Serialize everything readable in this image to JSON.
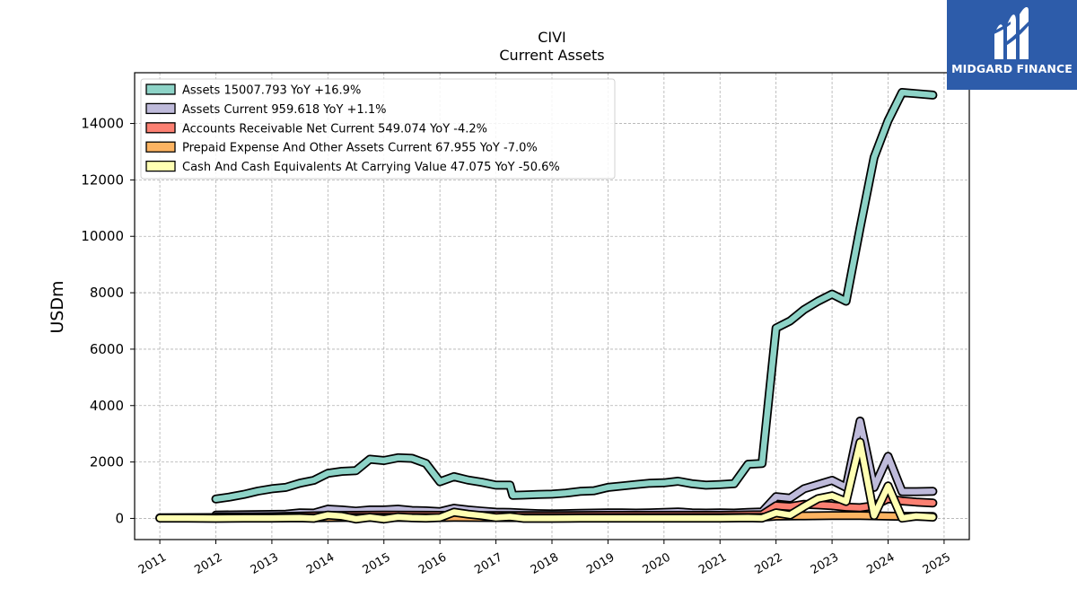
{
  "brand": {
    "name": "MIDGARD FINANCE",
    "background_color": "#2d5caa",
    "logo_icon": "midgard-m-logo-icon"
  },
  "chart_data": {
    "type": "line",
    "title": "CIVI",
    "subtitle": "Current  Assets",
    "xlabel": "",
    "ylabel": "USDm",
    "xlim": [
      2010.55,
      2025.45
    ],
    "ylim": [
      -750,
      15800
    ],
    "x_ticks": [
      "2011",
      "2012",
      "2013",
      "2014",
      "2015",
      "2016",
      "2017",
      "2018",
      "2019",
      "2020",
      "2021",
      "2022",
      "2023",
      "2024",
      "2025"
    ],
    "y_ticks": [
      "0",
      "2000",
      "4000",
      "6000",
      "8000",
      "10000",
      "12000",
      "14000"
    ],
    "y_tick_values": [
      0,
      2000,
      4000,
      6000,
      8000,
      10000,
      12000,
      14000
    ],
    "grid": true,
    "legend_position": "upper-left",
    "series": [
      {
        "name": "Assets",
        "legend": "Assets  15007.793 YoY +16.9%",
        "color": "#8dd3c7",
        "points": [
          [
            2012.0,
            690
          ],
          [
            2012.25,
            760
          ],
          [
            2012.5,
            850
          ],
          [
            2012.75,
            970
          ],
          [
            2013.0,
            1050
          ],
          [
            2013.25,
            1100
          ],
          [
            2013.5,
            1250
          ],
          [
            2013.75,
            1350
          ],
          [
            2014.0,
            1600
          ],
          [
            2014.25,
            1670
          ],
          [
            2014.5,
            1690
          ],
          [
            2014.75,
            2100
          ],
          [
            2015.0,
            2050
          ],
          [
            2015.25,
            2150
          ],
          [
            2015.5,
            2130
          ],
          [
            2015.75,
            1950
          ],
          [
            2016.0,
            1300
          ],
          [
            2016.25,
            1480
          ],
          [
            2016.5,
            1360
          ],
          [
            2016.75,
            1280
          ],
          [
            2017.0,
            1180
          ],
          [
            2017.25,
            1180
          ],
          [
            2017.3,
            820
          ],
          [
            2017.5,
            830
          ],
          [
            2017.75,
            850
          ],
          [
            2018.0,
            860
          ],
          [
            2018.25,
            900
          ],
          [
            2018.5,
            960
          ],
          [
            2018.75,
            980
          ],
          [
            2019.0,
            1100
          ],
          [
            2019.25,
            1150
          ],
          [
            2019.5,
            1200
          ],
          [
            2019.75,
            1250
          ],
          [
            2020.0,
            1260
          ],
          [
            2020.25,
            1320
          ],
          [
            2020.5,
            1230
          ],
          [
            2020.75,
            1180
          ],
          [
            2021.0,
            1200
          ],
          [
            2021.25,
            1230
          ],
          [
            2021.5,
            1920
          ],
          [
            2021.75,
            1950
          ],
          [
            2022.0,
            6750
          ],
          [
            2022.25,
            7000
          ],
          [
            2022.5,
            7400
          ],
          [
            2022.75,
            7700
          ],
          [
            2023.0,
            7950
          ],
          [
            2023.25,
            7700
          ],
          [
            2023.5,
            10300
          ],
          [
            2023.75,
            12800
          ],
          [
            2024.0,
            14100
          ],
          [
            2024.25,
            15100
          ],
          [
            2024.5,
            15060
          ],
          [
            2024.8,
            15008
          ]
        ]
      },
      {
        "name": "Assets Current",
        "legend": "Assets Current  959.618 YoY +1.1%",
        "color": "#bebada",
        "points": [
          [
            2012.0,
            120
          ],
          [
            2012.5,
            130
          ],
          [
            2013.0,
            140
          ],
          [
            2013.25,
            150
          ],
          [
            2013.5,
            200
          ],
          [
            2013.75,
            190
          ],
          [
            2014.0,
            330
          ],
          [
            2014.25,
            300
          ],
          [
            2014.5,
            260
          ],
          [
            2014.75,
            300
          ],
          [
            2015.0,
            300
          ],
          [
            2015.25,
            330
          ],
          [
            2015.5,
            280
          ],
          [
            2015.75,
            270
          ],
          [
            2016.0,
            240
          ],
          [
            2016.25,
            360
          ],
          [
            2016.5,
            300
          ],
          [
            2016.75,
            260
          ],
          [
            2017.0,
            220
          ],
          [
            2017.25,
            210
          ],
          [
            2017.5,
            190
          ],
          [
            2017.75,
            170
          ],
          [
            2018.0,
            160
          ],
          [
            2018.25,
            170
          ],
          [
            2018.5,
            180
          ],
          [
            2018.75,
            190
          ],
          [
            2019.0,
            200
          ],
          [
            2019.25,
            200
          ],
          [
            2019.5,
            190
          ],
          [
            2019.75,
            200
          ],
          [
            2020.0,
            210
          ],
          [
            2020.25,
            230
          ],
          [
            2020.5,
            200
          ],
          [
            2020.75,
            190
          ],
          [
            2021.0,
            200
          ],
          [
            2021.25,
            190
          ],
          [
            2021.5,
            210
          ],
          [
            2021.75,
            230
          ],
          [
            2022.0,
            770
          ],
          [
            2022.25,
            720
          ],
          [
            2022.5,
            1050
          ],
          [
            2022.75,
            1200
          ],
          [
            2023.0,
            1350
          ],
          [
            2023.25,
            1100
          ],
          [
            2023.5,
            3450
          ],
          [
            2023.75,
            1100
          ],
          [
            2024.0,
            2200
          ],
          [
            2024.25,
            950
          ],
          [
            2024.5,
            950
          ],
          [
            2024.8,
            960
          ]
        ]
      },
      {
        "name": "Accounts Receivable Net Current",
        "legend": "Accounts Receivable Net Current  549.074 YoY -4.2%",
        "color": "#fb8072",
        "points": [
          [
            2012.0,
            50
          ],
          [
            2013.0,
            60
          ],
          [
            2013.5,
            80
          ],
          [
            2014.0,
            100
          ],
          [
            2015.0,
            120
          ],
          [
            2016.0,
            110
          ],
          [
            2017.0,
            100
          ],
          [
            2018.0,
            100
          ],
          [
            2019.0,
            110
          ],
          [
            2020.0,
            110
          ],
          [
            2021.0,
            110
          ],
          [
            2021.75,
            130
          ],
          [
            2022.0,
            450
          ],
          [
            2022.25,
            420
          ],
          [
            2022.5,
            500
          ],
          [
            2022.75,
            480
          ],
          [
            2023.0,
            450
          ],
          [
            2023.25,
            400
          ],
          [
            2023.5,
            380
          ],
          [
            2023.75,
            450
          ],
          [
            2024.0,
            700
          ],
          [
            2024.25,
            620
          ],
          [
            2024.5,
            580
          ],
          [
            2024.8,
            549
          ]
        ]
      },
      {
        "name": "Prepaid Expense And Other Assets Current",
        "legend": "Prepaid Expense And Other Assets Current  67.955 YoY -7.0%",
        "color": "#fdb462",
        "points": [
          [
            2011.0,
            20
          ],
          [
            2012.0,
            30
          ],
          [
            2013.0,
            30
          ],
          [
            2013.75,
            20
          ],
          [
            2014.0,
            30
          ],
          [
            2015.0,
            40
          ],
          [
            2016.0,
            30
          ],
          [
            2016.25,
            40
          ],
          [
            2017.0,
            30
          ],
          [
            2018.0,
            30
          ],
          [
            2019.0,
            30
          ],
          [
            2020.0,
            30
          ],
          [
            2021.0,
            30
          ],
          [
            2021.75,
            40
          ],
          [
            2022.0,
            80
          ],
          [
            2022.5,
            90
          ],
          [
            2023.0,
            100
          ],
          [
            2023.5,
            100
          ],
          [
            2024.0,
            80
          ],
          [
            2024.25,
            73
          ],
          [
            2024.8,
            68
          ]
        ]
      },
      {
        "name": "Cash And Cash Equivalents At Carrying Value",
        "legend": "Cash And Cash Equivalents At Carrying Value  47.075 YoY -50.6%",
        "color": "#ffffb3",
        "points": [
          [
            2011.0,
            10
          ],
          [
            2011.5,
            10
          ],
          [
            2012.0,
            0
          ],
          [
            2012.5,
            10
          ],
          [
            2013.0,
            10
          ],
          [
            2013.5,
            20
          ],
          [
            2013.75,
            0
          ],
          [
            2014.0,
            120
          ],
          [
            2014.25,
            80
          ],
          [
            2014.5,
            -20
          ],
          [
            2014.75,
            40
          ],
          [
            2015.0,
            -20
          ],
          [
            2015.25,
            50
          ],
          [
            2015.5,
            20
          ],
          [
            2015.75,
            10
          ],
          [
            2016.0,
            30
          ],
          [
            2016.25,
            220
          ],
          [
            2016.5,
            150
          ],
          [
            2016.75,
            100
          ],
          [
            2017.0,
            30
          ],
          [
            2017.25,
            60
          ],
          [
            2017.5,
            0
          ],
          [
            2018.0,
            0
          ],
          [
            2018.5,
            10
          ],
          [
            2019.0,
            10
          ],
          [
            2019.5,
            10
          ],
          [
            2020.0,
            10
          ],
          [
            2020.5,
            10
          ],
          [
            2021.0,
            10
          ],
          [
            2021.5,
            20
          ],
          [
            2021.75,
            10
          ],
          [
            2022.0,
            200
          ],
          [
            2022.25,
            120
          ],
          [
            2022.5,
            420
          ],
          [
            2022.75,
            700
          ],
          [
            2023.0,
            800
          ],
          [
            2023.25,
            600
          ],
          [
            2023.5,
            2700
          ],
          [
            2023.75,
            100
          ],
          [
            2024.0,
            1150
          ],
          [
            2024.25,
            10
          ],
          [
            2024.5,
            80
          ],
          [
            2024.8,
            47
          ]
        ]
      }
    ]
  }
}
